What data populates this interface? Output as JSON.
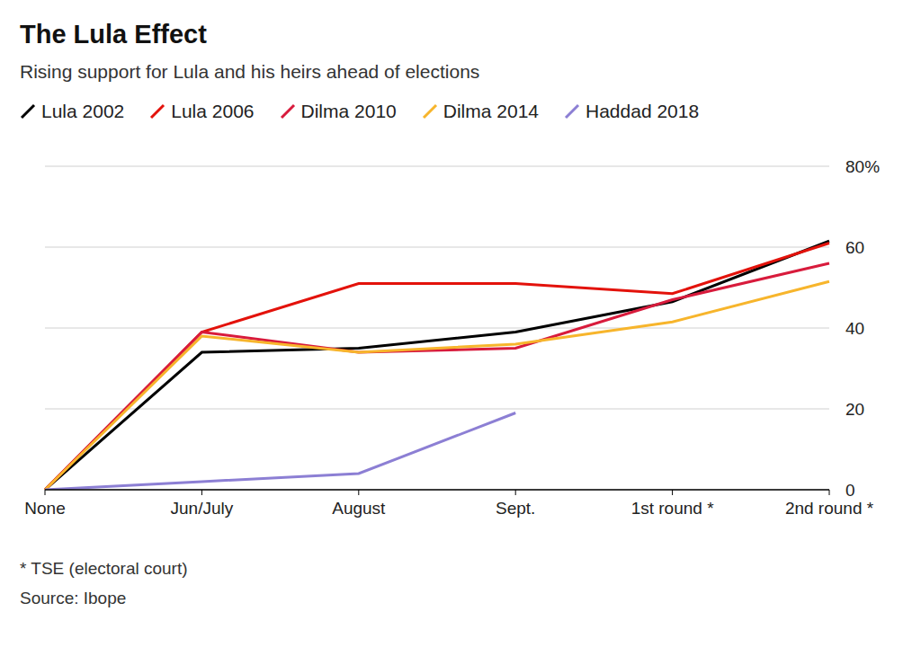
{
  "chart_data": {
    "type": "line",
    "title": "The Lula Effect",
    "subtitle": "Rising support for Lula and his heirs ahead of elections",
    "categories": [
      "None",
      "Jun/July",
      "August",
      "Sept.",
      "1st round *",
      "2nd round *"
    ],
    "series": [
      {
        "name": "Lula 2002",
        "color": "#000000",
        "values": [
          0,
          34,
          35,
          39,
          46.5,
          61.5
        ]
      },
      {
        "name": "Lula 2006",
        "color": "#e3120b",
        "values": [
          0,
          39,
          51,
          51,
          48.5,
          61
        ]
      },
      {
        "name": "Dilma 2010",
        "color": "#d81b3c",
        "values": [
          0,
          39,
          34,
          35,
          47,
          56
        ]
      },
      {
        "name": "Dilma 2014",
        "color": "#f7b52c",
        "values": [
          0,
          38,
          34,
          36,
          41.5,
          51.5
        ]
      },
      {
        "name": "Haddad 2018",
        "color": "#8c7fd4",
        "values": [
          0,
          2,
          4,
          19,
          null,
          null
        ]
      }
    ],
    "ylim": [
      0,
      80
    ],
    "yticks": [
      0,
      20,
      40,
      60,
      {
        "value": 80,
        "label": "80%"
      }
    ],
    "grid": true,
    "legend": "top",
    "footnote": "* TSE (electoral court)",
    "source": "Source: Ibope"
  }
}
